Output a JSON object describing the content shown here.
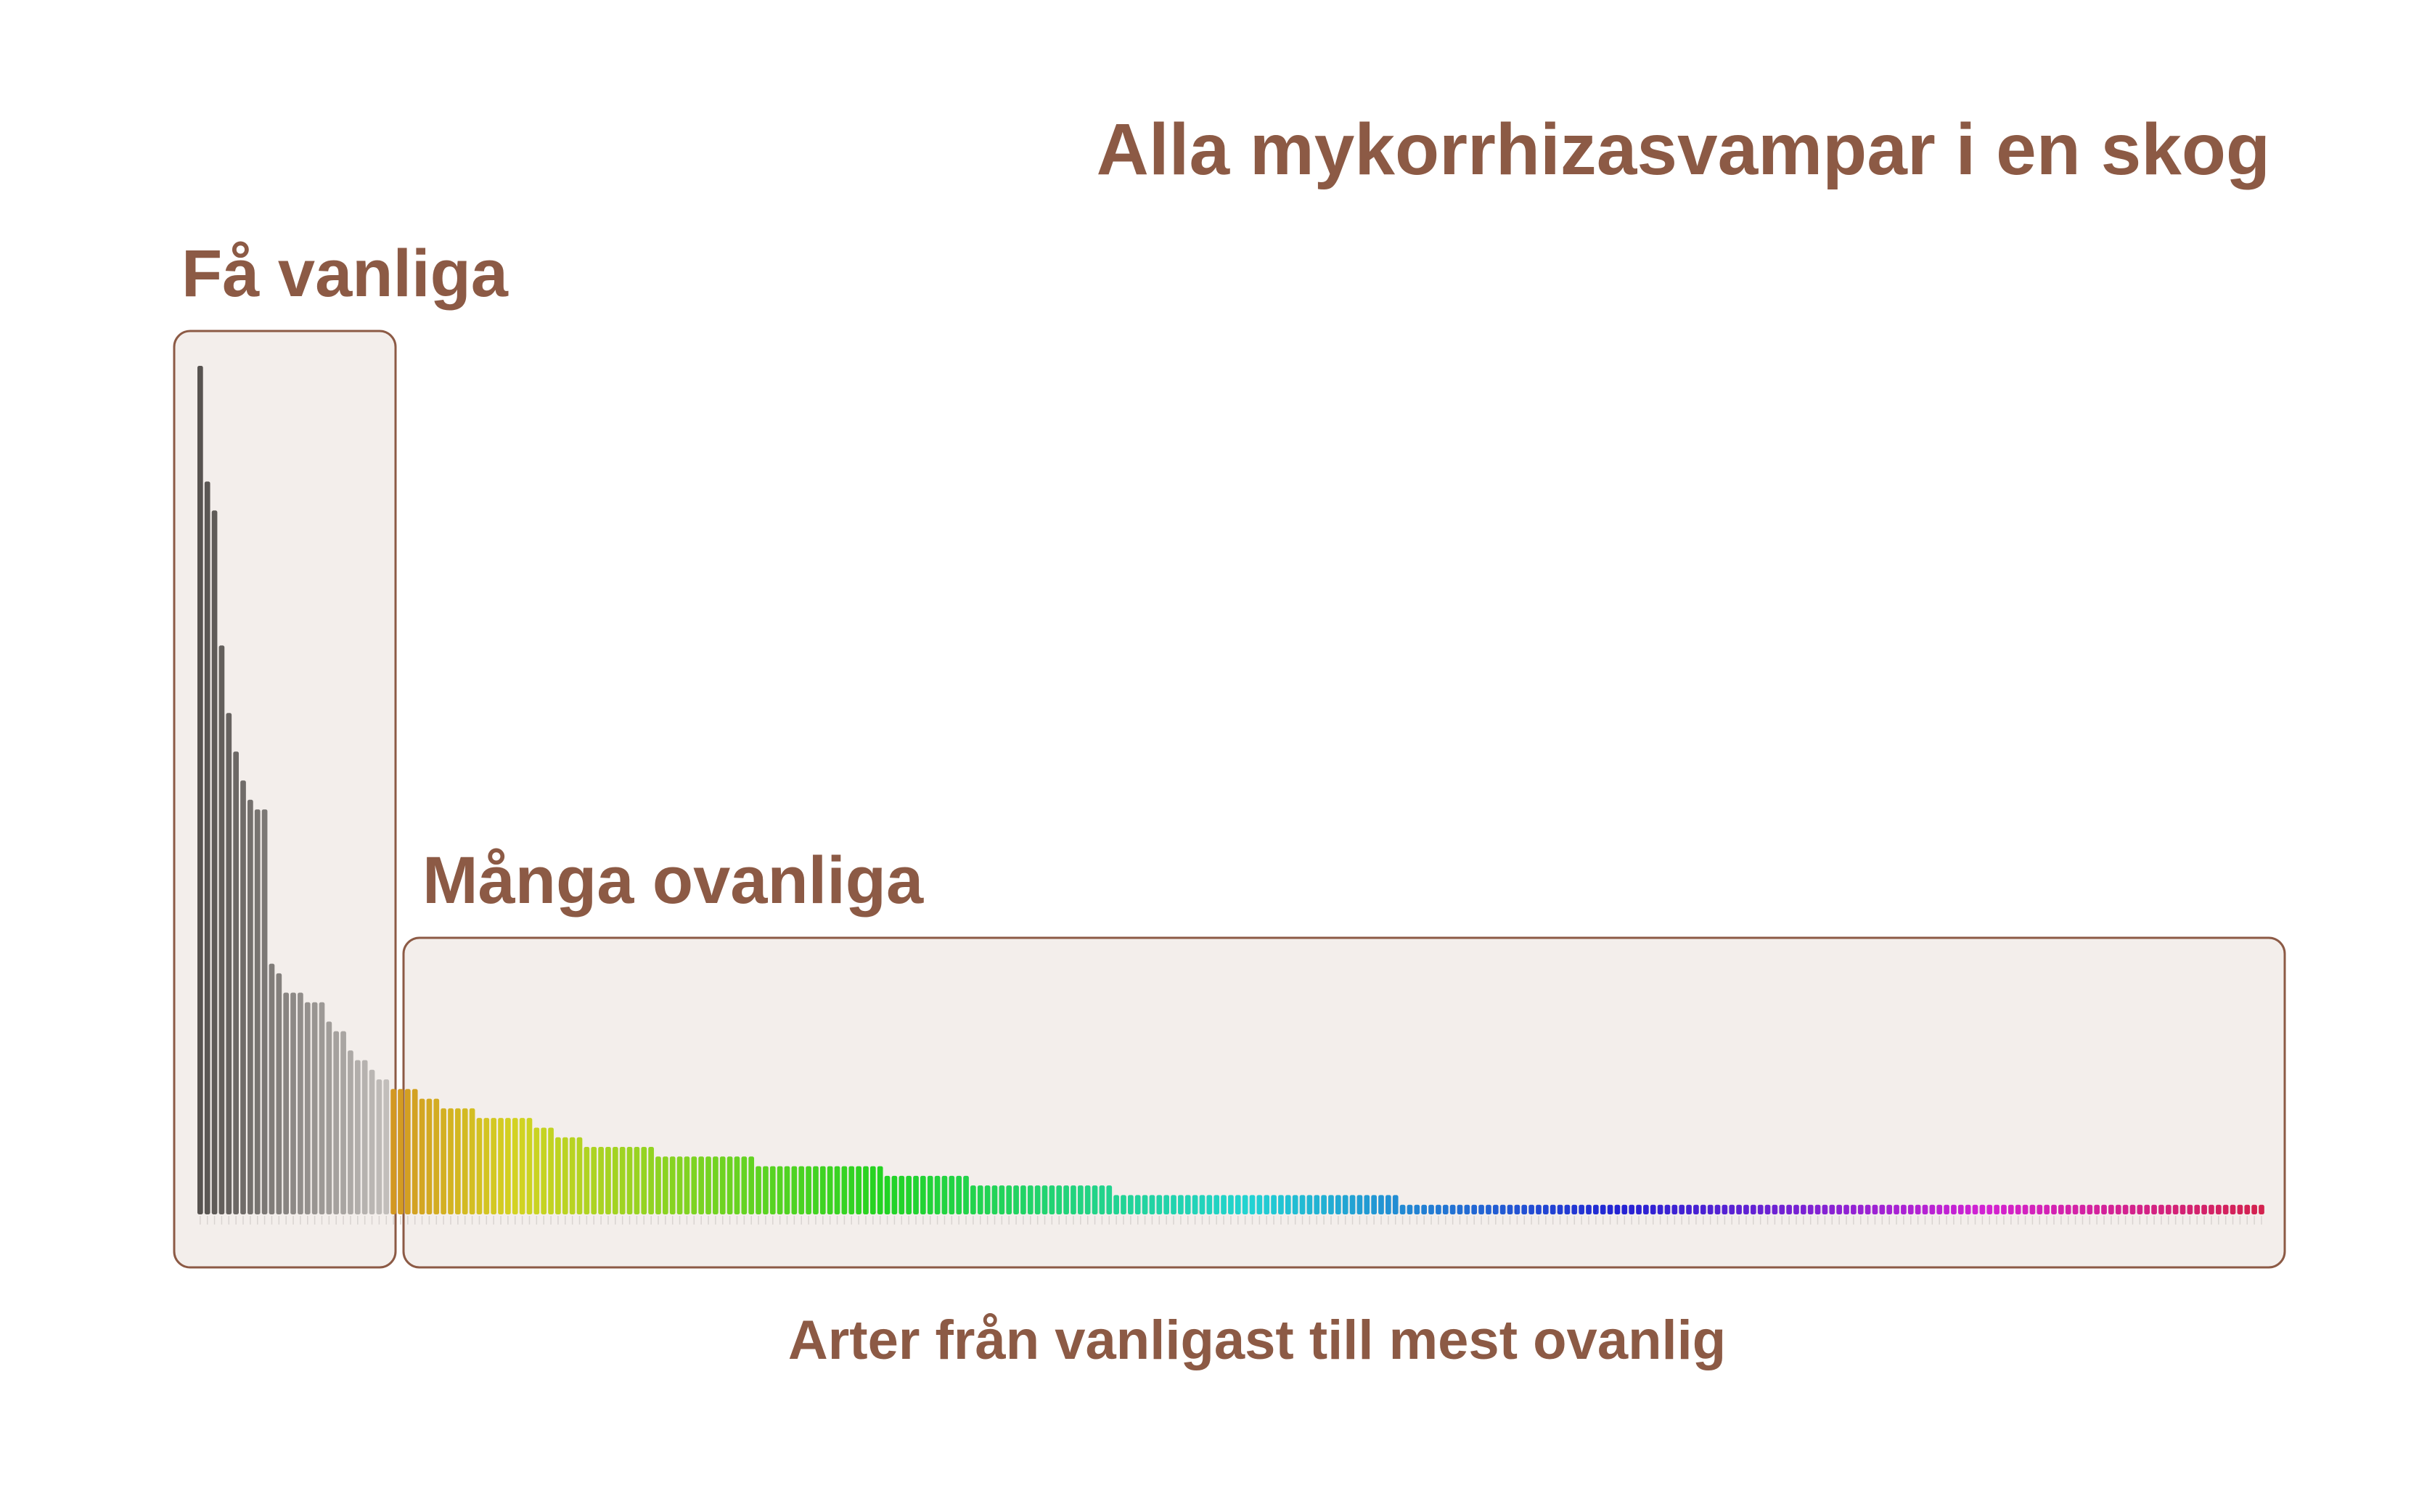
{
  "chart_data": {
    "type": "bar",
    "title": "Alla mykorrhizasvampar i en skog",
    "xlabel": "Arter från vanligast till mest ovanlig",
    "ylabel": "",
    "ylim": [
      0,
      88
    ],
    "grid": false,
    "groups": [
      {
        "label": "Få vanliga",
        "first_rank": 1,
        "last_rank": 27
      },
      {
        "label": "Många ovanliga",
        "first_rank": 28,
        "last_rank": 268
      }
    ],
    "values": [
      88,
      76,
      73,
      59,
      52,
      48,
      45,
      43,
      42,
      42,
      26,
      25,
      23,
      23,
      23,
      22,
      22,
      22,
      20,
      19,
      19,
      17,
      16,
      16,
      15,
      14,
      14,
      13,
      13,
      13,
      13,
      12,
      12,
      12,
      11,
      11,
      11,
      11,
      11,
      10,
      10,
      10,
      10,
      10,
      10,
      10,
      10,
      9,
      9,
      9,
      8,
      8,
      8,
      8,
      7,
      7,
      7,
      7,
      7,
      7,
      7,
      7,
      7,
      7,
      6,
      6,
      6,
      6,
      6,
      6,
      6,
      6,
      6,
      6,
      6,
      6,
      6,
      6,
      5,
      5,
      5,
      5,
      5,
      5,
      5,
      5,
      5,
      5,
      5,
      5,
      5,
      5,
      5,
      5,
      5,
      5,
      4,
      4,
      4,
      4,
      4,
      4,
      4,
      4,
      4,
      4,
      4,
      4,
      3,
      3,
      3,
      3,
      3,
      3,
      3,
      3,
      3,
      3,
      3,
      3,
      3,
      3,
      3,
      3,
      3,
      3,
      3,
      3,
      2,
      2,
      2,
      2,
      2,
      2,
      2,
      2,
      2,
      2,
      2,
      2,
      2,
      2,
      2,
      2,
      2,
      2,
      2,
      2,
      2,
      2,
      2,
      2,
      2,
      2,
      2,
      2,
      2,
      2,
      2,
      2,
      2,
      2,
      2,
      2,
      2,
      2,
      2,
      2,
      1,
      1,
      1,
      1,
      1,
      1,
      1,
      1,
      1,
      1,
      1,
      1,
      1,
      1,
      1,
      1,
      1,
      1,
      1,
      1,
      1,
      1,
      1,
      1,
      1,
      1,
      1,
      1,
      1,
      1,
      1,
      1,
      1,
      1,
      1,
      1,
      1,
      1,
      1,
      1,
      1,
      1,
      1,
      1,
      1,
      1,
      1,
      1,
      1,
      1,
      1,
      1,
      1,
      1,
      1,
      1,
      1,
      1,
      1,
      1,
      1,
      1,
      1,
      1,
      1,
      1,
      1,
      1,
      1,
      1,
      1,
      1,
      1,
      1,
      1,
      1,
      1,
      1,
      1,
      1,
      1,
      1,
      1,
      1,
      1,
      1,
      1,
      1,
      1,
      1,
      1,
      1,
      1,
      1,
      1,
      1,
      1,
      1,
      1,
      1,
      1,
      1,
      1,
      1,
      1,
      1,
      1,
      1,
      1,
      1,
      1,
      1,
      1,
      1,
      1,
      1,
      1,
      1,
      1,
      1,
      1
    ],
    "colors": {
      "text": "#8c5a45",
      "box_fill": "#f3eeeb",
      "box_stroke": "#8c5a45",
      "common_gradient": [
        "#575350",
        "#c2bebb"
      ],
      "rare_gradient_hues": [
        40,
        345
      ]
    }
  }
}
